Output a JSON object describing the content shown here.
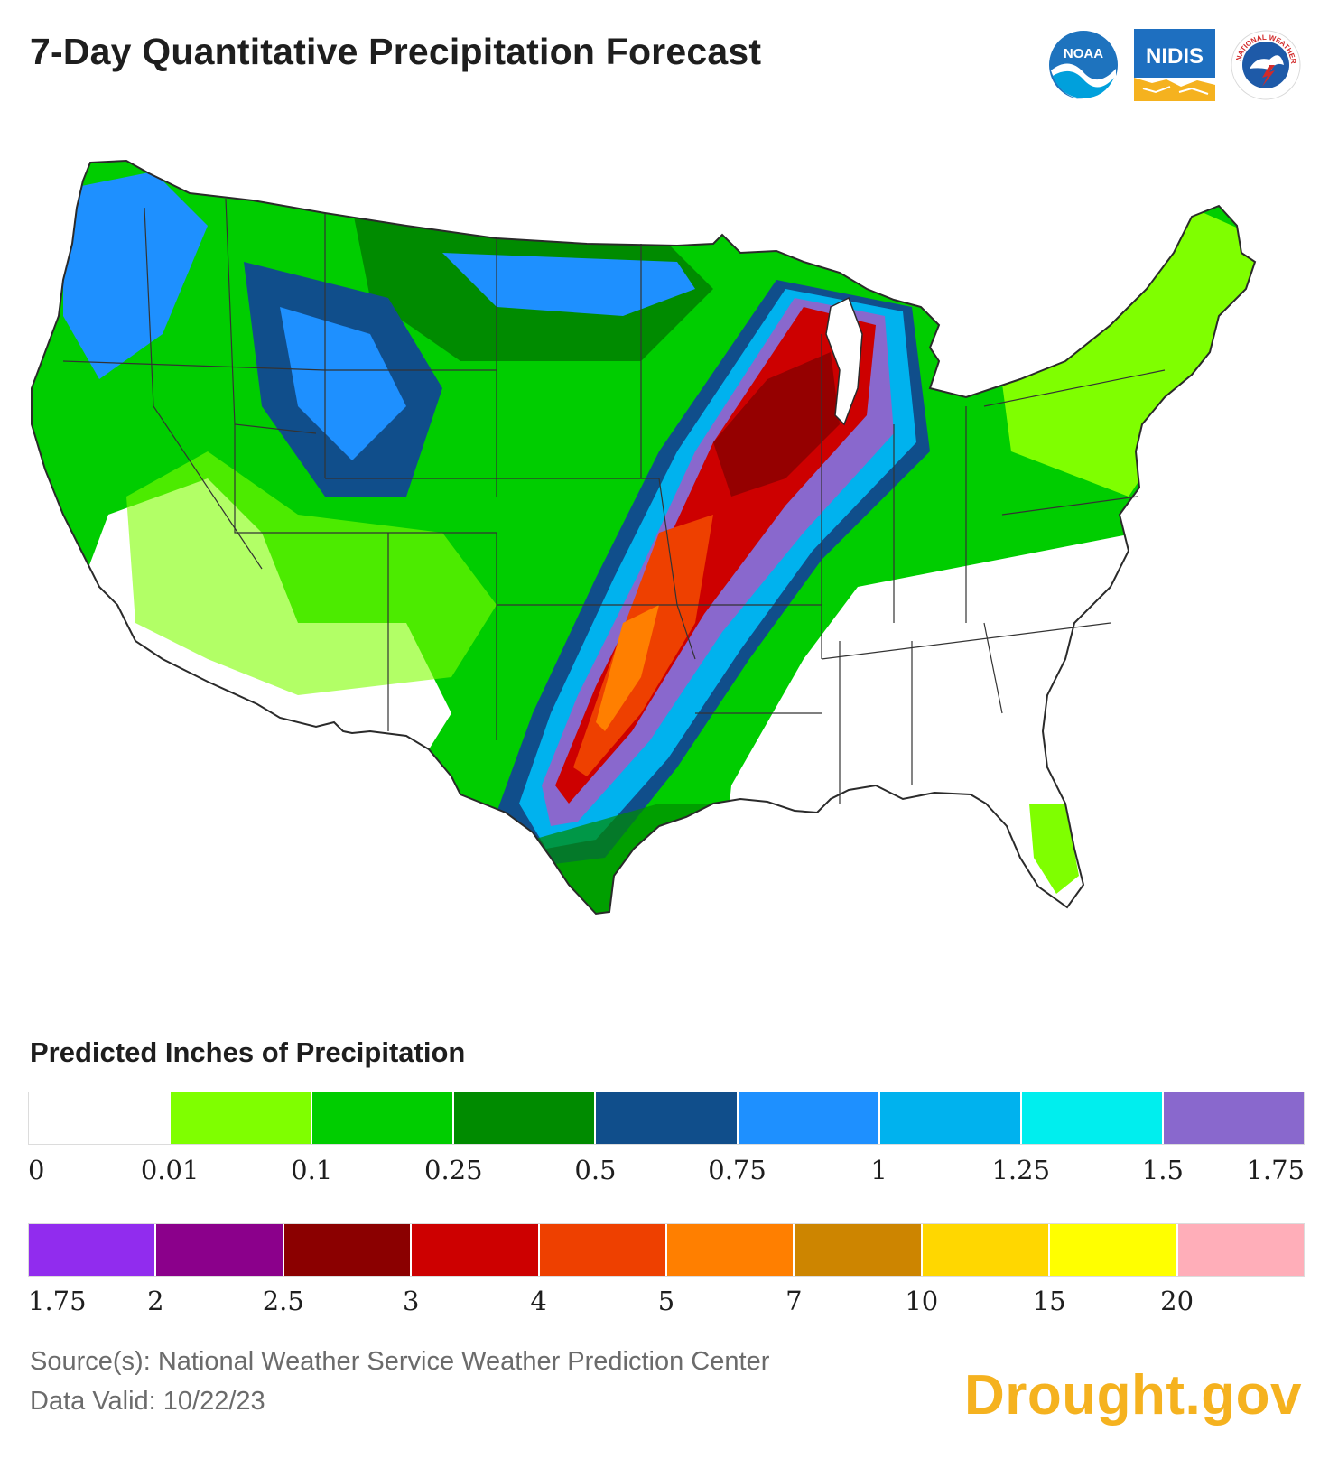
{
  "header": {
    "title": "7-Day Quantitative Precipitation Forecast",
    "logos": [
      {
        "name": "noaa-logo",
        "text": "NOAA"
      },
      {
        "name": "nidis-logo",
        "text": "NIDIS"
      },
      {
        "name": "nws-logo",
        "text": "NATIONAL WEATHER SERVICE"
      }
    ]
  },
  "map": {
    "region": "Contiguous United States",
    "zones": [
      {
        "name": "southeast-dry",
        "category": "0"
      },
      {
        "name": "southwest-dry",
        "category": "0"
      },
      {
        "name": "northeast",
        "category": "0.1"
      },
      {
        "name": "pacific-northwest",
        "category": "1"
      },
      {
        "name": "northern-plains",
        "category": "0.25"
      },
      {
        "name": "central-rockies",
        "category": "0.75"
      },
      {
        "name": "mississippi-valley-band",
        "category": "1.5"
      },
      {
        "name": "core-heavy-rain",
        "category": "3"
      },
      {
        "name": "core-heaviest",
        "category": "5"
      }
    ]
  },
  "legend": {
    "title": "Predicted Inches of Precipitation",
    "row1": {
      "colors": [
        "#ffffff",
        "#7fff00",
        "#00cd00",
        "#008b00",
        "#104e8b",
        "#1e90ff",
        "#00b2ee",
        "#00eeee",
        "#8968cd"
      ],
      "ticks": [
        "0",
        "0.01",
        "0.1",
        "0.25",
        "0.5",
        "0.75",
        "1",
        "1.25",
        "1.5",
        "1.75"
      ]
    },
    "row2": {
      "colors": [
        "#912cee",
        "#8b008b",
        "#8b0000",
        "#cd0000",
        "#ee4000",
        "#ff7f00",
        "#cd8500",
        "#ffd700",
        "#ffff00",
        "#ffaeb9"
      ],
      "ticks": [
        "1.75",
        "2",
        "2.5",
        "3",
        "4",
        "5",
        "7",
        "10",
        "15",
        "20"
      ]
    }
  },
  "footer": {
    "source": "Source(s): National Weather Service Weather Prediction Center",
    "valid": "Data Valid: 10/22/23",
    "brand": "Drought.gov"
  }
}
